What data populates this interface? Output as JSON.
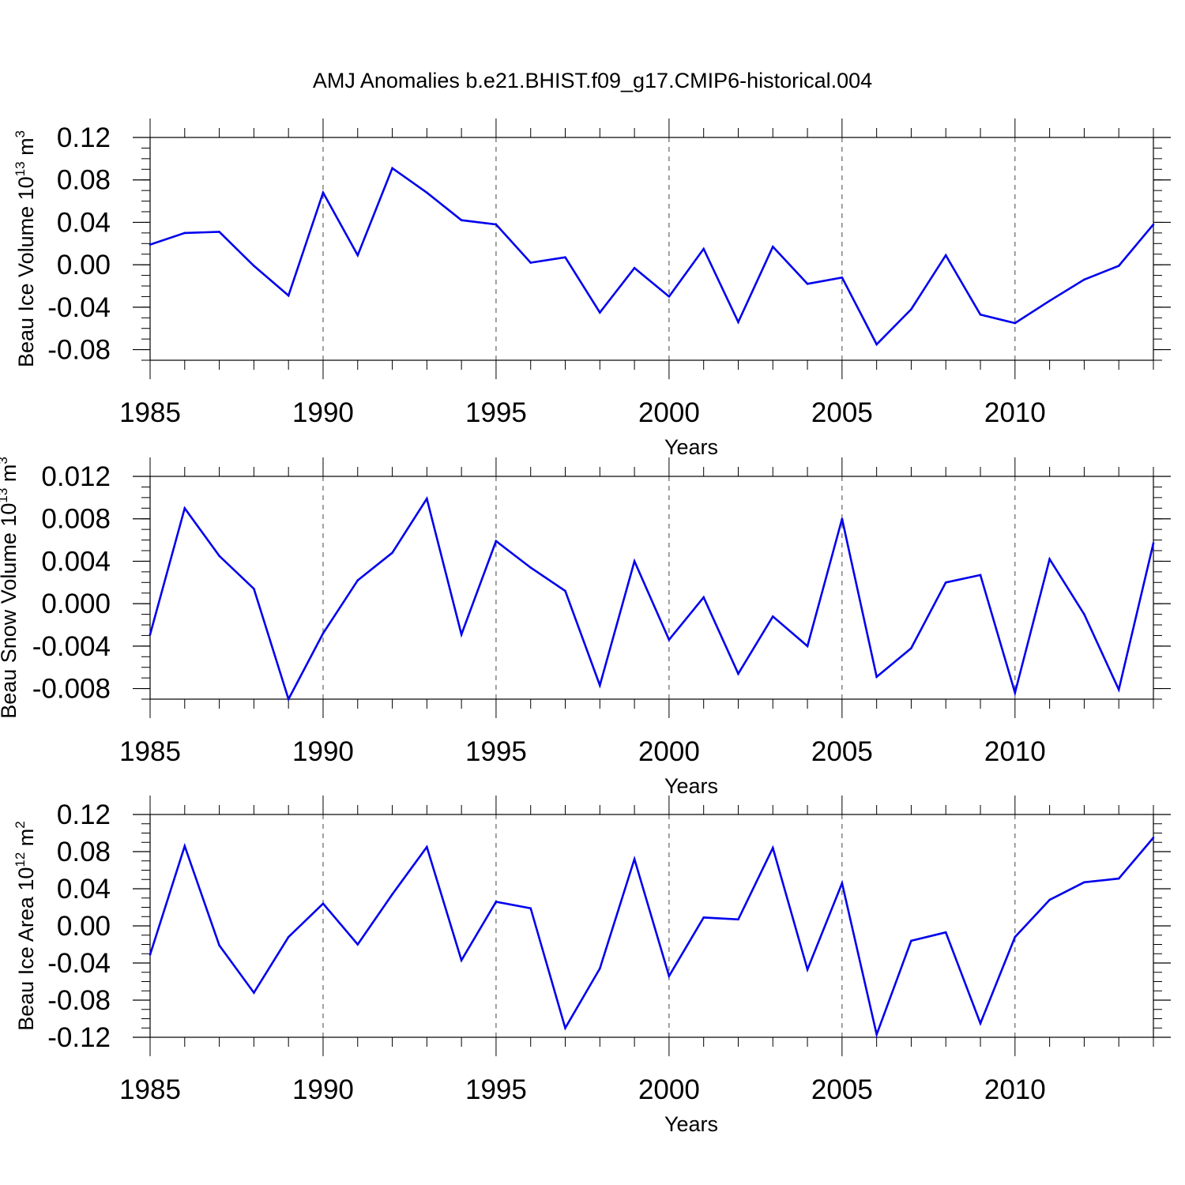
{
  "chart_data": {
    "title": "AMJ Anomalies b.e21.BHIST.f09_g17.CMIP6-historical.004",
    "line_color": "#0000ee",
    "grid_color": "#444444",
    "panels": [
      {
        "type": "line",
        "ylabel": {
          "text": "Beau Ice Volume 10",
          "sup": "13",
          "unit": " m",
          "unit_sup": "3"
        },
        "xlabel": "Years",
        "ylim": [
          -0.09,
          0.12
        ],
        "yticks": [
          -0.08,
          -0.04,
          0.0,
          0.04,
          0.08,
          0.12
        ],
        "ytick_labels": [
          "-0.08",
          "-0.04",
          "0.00",
          "0.04",
          "0.08",
          "0.12"
        ],
        "x": [
          1985,
          1986,
          1987,
          1988,
          1989,
          1990,
          1991,
          1992,
          1993,
          1994,
          1995,
          1996,
          1997,
          1998,
          1999,
          2000,
          2001,
          2002,
          2003,
          2004,
          2005,
          2006,
          2007,
          2008,
          2009,
          2010,
          2011,
          2012,
          2013,
          2014
        ],
        "values": [
          0.019,
          0.03,
          0.031,
          -0.001,
          -0.029,
          0.068,
          0.009,
          0.091,
          0.068,
          0.042,
          0.038,
          0.002,
          0.007,
          -0.045,
          -0.003,
          -0.03,
          0.015,
          -0.054,
          0.017,
          -0.018,
          -0.012,
          -0.075,
          -0.042,
          0.009,
          -0.047,
          -0.055,
          -0.034,
          -0.014,
          -0.001,
          0.038
        ]
      },
      {
        "type": "line",
        "ylabel": {
          "text": "Beau Snow Volume 10",
          "sup": "13",
          "unit": " m",
          "unit_sup": "3"
        },
        "xlabel": "Years",
        "ylim": [
          -0.009,
          0.012
        ],
        "yticks": [
          -0.008,
          -0.004,
          0.0,
          0.004,
          0.008,
          0.012
        ],
        "ytick_labels": [
          "-0.008",
          "-0.004",
          "0.000",
          "0.004",
          "0.008",
          "0.012"
        ],
        "x": [
          1985,
          1986,
          1987,
          1988,
          1989,
          1990,
          1991,
          1992,
          1993,
          1994,
          1995,
          1996,
          1997,
          1998,
          1999,
          2000,
          2001,
          2002,
          2003,
          2004,
          2005,
          2006,
          2007,
          2008,
          2009,
          2010,
          2011,
          2012,
          2013,
          2014
        ],
        "values": [
          -0.0029,
          0.009,
          0.0045,
          0.0014,
          -0.009,
          -0.0028,
          0.0022,
          0.0048,
          0.0099,
          -0.0029,
          0.0059,
          0.0034,
          0.0012,
          -0.0077,
          0.004,
          -0.0034,
          0.0006,
          -0.0066,
          -0.0012,
          -0.004,
          0.008,
          -0.0069,
          -0.0042,
          0.002,
          0.0027,
          -0.0084,
          0.0042,
          -0.001,
          -0.0081,
          0.0057
        ]
      },
      {
        "type": "line",
        "ylabel": {
          "text": "Beau Ice Area 10",
          "sup": "12",
          "unit": " m",
          "unit_sup": "2"
        },
        "xlabel": "Years",
        "ylim": [
          -0.12,
          0.12
        ],
        "yticks": [
          -0.12,
          -0.08,
          -0.04,
          0.0,
          0.04,
          0.08,
          0.12
        ],
        "ytick_labels": [
          "-0.12",
          "-0.08",
          "-0.04",
          "0.00",
          "0.04",
          "0.08",
          "0.12"
        ],
        "x": [
          1985,
          1986,
          1987,
          1988,
          1989,
          1990,
          1991,
          1992,
          1993,
          1994,
          1995,
          1996,
          1997,
          1998,
          1999,
          2000,
          2001,
          2002,
          2003,
          2004,
          2005,
          2006,
          2007,
          2008,
          2009,
          2010,
          2011,
          2012,
          2013,
          2014
        ],
        "values": [
          -0.031,
          0.086,
          -0.021,
          -0.072,
          -0.012,
          0.024,
          -0.02,
          0.034,
          0.085,
          -0.037,
          0.026,
          0.019,
          -0.11,
          -0.046,
          0.072,
          -0.054,
          0.009,
          0.007,
          0.084,
          -0.047,
          0.046,
          -0.117,
          -0.016,
          -0.007,
          -0.105,
          -0.012,
          0.028,
          0.047,
          0.051,
          0.095
        ]
      }
    ],
    "xlim": [
      1985,
      2014
    ],
    "xticks": [
      1985,
      1990,
      1995,
      2000,
      2005,
      2010
    ],
    "xtick_labels": [
      "1985",
      "1990",
      "1995",
      "2000",
      "2005",
      "2010"
    ],
    "grid_x": [
      1990,
      1995,
      2000,
      2005,
      2010
    ]
  }
}
